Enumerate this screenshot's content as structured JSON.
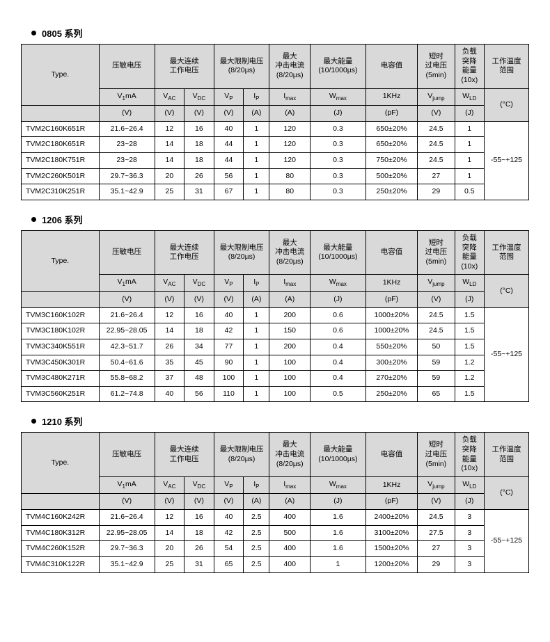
{
  "sections": [
    {
      "title": "0805 系列",
      "headers": {
        "type": "Type.",
        "h1": "压敏电压",
        "h2": "最大连续\n工作电压",
        "h3": "最大限制电压\n(8/20µs)",
        "h4": "最大\n冲击电流\n(8/20µs)",
        "h5": "最大能量\n(10/1000µs)",
        "h6": "电容值",
        "h7": "短时\n过电压\n(5min)",
        "h8": "负载\n突降\n能量\n(10x)",
        "h9": "工作温度\n范围"
      },
      "subheaders": [
        "V₁mA",
        "V_AC",
        "V_DC",
        "V_P",
        "I_P",
        "I_max",
        "W_max",
        "1KHz",
        "V_jump",
        "W_LD"
      ],
      "units": [
        "(V)",
        "(V)",
        "(V)",
        "(V)",
        "(A)",
        "(A)",
        "(J)",
        "(pF)",
        "(V)",
        "(J)",
        "(°C)"
      ],
      "rows": [
        [
          "TVM2C160K651R",
          "21.6~26.4",
          "12",
          "16",
          "40",
          "1",
          "120",
          "0.3",
          "650±20%",
          "24.5",
          "1"
        ],
        [
          "TVM2C180K651R",
          "23~28",
          "14",
          "18",
          "44",
          "1",
          "120",
          "0.3",
          "650±20%",
          "24.5",
          "1"
        ],
        [
          "TVM2C180K751R",
          "23~28",
          "14",
          "18",
          "44",
          "1",
          "120",
          "0.3",
          "750±20%",
          "24.5",
          "1"
        ],
        [
          "TVM2C260K501R",
          "29.7~36.3",
          "20",
          "26",
          "56",
          "1",
          "80",
          "0.3",
          "500±20%",
          "27",
          "1"
        ],
        [
          "TVM2C310K251R",
          "35.1~42.9",
          "25",
          "31",
          "67",
          "1",
          "80",
          "0.3",
          "250±20%",
          "29",
          "0.5"
        ]
      ],
      "temp_range": "-55~+125"
    },
    {
      "title": "1206 系列",
      "headers": {
        "type": "Type.",
        "h1": "压敏电压",
        "h2": "最大连续\n工作电压",
        "h3": "最大限制电压\n(8/20µs)",
        "h4": "最大\n冲击电流\n(8/20µs)",
        "h5": "最大能量\n(10/1000µs)",
        "h6": "电容值",
        "h7": "短时\n过电压\n(5min)",
        "h8": "负载\n突降\n能量\n(10x)",
        "h9": "工作温度\n范围"
      },
      "subheaders": [
        "V₁mA",
        "V_AC",
        "V_DC",
        "V_P",
        "I_P",
        "I_max",
        "W_max",
        "1KHz",
        "V_jump",
        "W_LD"
      ],
      "units": [
        "(V)",
        "(V)",
        "(V)",
        "(V)",
        "(A)",
        "(A)",
        "(J)",
        "(pF)",
        "(V)",
        "(J)",
        "(°C)"
      ],
      "rows": [
        [
          "TVM3C160K102R",
          "21.6~26.4",
          "12",
          "16",
          "40",
          "1",
          "200",
          "0.6",
          "1000±20%",
          "24.5",
          "1.5"
        ],
        [
          "TVM3C180K102R",
          "22.95~28.05",
          "14",
          "18",
          "42",
          "1",
          "150",
          "0.6",
          "1000±20%",
          "24.5",
          "1.5"
        ],
        [
          "TVM3C340K551R",
          "42.3~51.7",
          "26",
          "34",
          "77",
          "1",
          "200",
          "0.4",
          "550±20%",
          "50",
          "1.5"
        ],
        [
          "TVM3C450K301R",
          "50.4~61.6",
          "35",
          "45",
          "90",
          "1",
          "100",
          "0.4",
          "300±20%",
          "59",
          "1.2"
        ],
        [
          "TVM3C480K271R",
          "55.8~68.2",
          "37",
          "48",
          "100",
          "1",
          "100",
          "0.4",
          "270±20%",
          "59",
          "1.2"
        ],
        [
          "TVM3C560K251R",
          "61.2~74.8",
          "40",
          "56",
          "110",
          "1",
          "100",
          "0.5",
          "250±20%",
          "65",
          "1.5"
        ]
      ],
      "temp_range": "-55~+125"
    },
    {
      "title": "1210 系列",
      "headers": {
        "type": "Type.",
        "h1": "压敏电压",
        "h2": "最大连续\n工作电压",
        "h3": "最大限制电压\n(8/20µs)",
        "h4": "最大\n冲击电流\n(8/20µs)",
        "h5": "最大能量\n(10/1000µs)",
        "h6": "电容值",
        "h7": "短时\n过电压\n(5min)",
        "h8": "负载\n突降\n能量\n(10x)",
        "h9": "工作温度\n范围"
      },
      "subheaders": [
        "V₁mA",
        "V_AC",
        "V_DC",
        "V_P",
        "I_P",
        "I_max",
        "W_max",
        "1KHz",
        "V_jump",
        "W_LD"
      ],
      "units": [
        "(V)",
        "(V)",
        "(V)",
        "(V)",
        "(A)",
        "(A)",
        "(J)",
        "(pF)",
        "(V)",
        "(J)",
        "(°C)"
      ],
      "rows": [
        [
          "TVM4C160K242R",
          "21.6~26.4",
          "12",
          "16",
          "40",
          "2.5",
          "400",
          "1.6",
          "2400±20%",
          "24.5",
          "3"
        ],
        [
          "TVM4C180K312R",
          "22.95~28.05",
          "14",
          "18",
          "42",
          "2.5",
          "500",
          "1.6",
          "3100±20%",
          "27.5",
          "3"
        ],
        [
          "TVM4C260K152R",
          "29.7~36.3",
          "20",
          "26",
          "54",
          "2.5",
          "400",
          "1.6",
          "1500±20%",
          "27",
          "3"
        ],
        [
          "TVM4C310K122R",
          "35.1~42.9",
          "25",
          "31",
          "65",
          "2.5",
          "400",
          "1",
          "1200±20%",
          "29",
          "3"
        ]
      ],
      "temp_range": "-55~+125"
    }
  ],
  "col_widths": {
    "type": 105,
    "v1ma": 75,
    "vac": 40,
    "vdc": 40,
    "vp": 40,
    "ip": 35,
    "imax": 55,
    "wmax": 75,
    "cap": 70,
    "vjump": 50,
    "wld": 40,
    "temp": 60
  }
}
